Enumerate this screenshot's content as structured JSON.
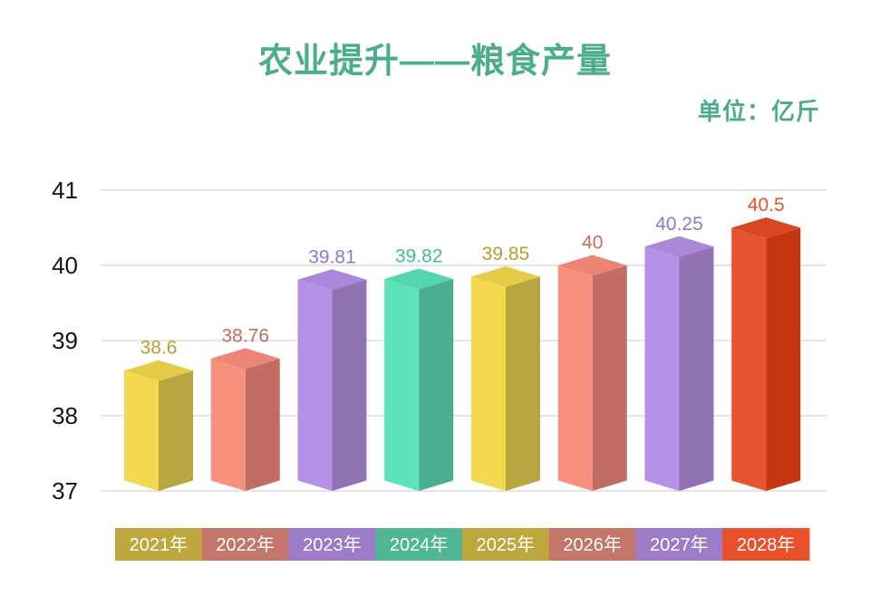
{
  "title": "农业提升——粮食产量",
  "unit_label": "单位：亿斤",
  "theme": {
    "title_color": "#4CAE88",
    "background": "#FFFFFF",
    "grid_color": "#DCDCDC",
    "axis_text_color": "#141414"
  },
  "chart_data": {
    "type": "bar",
    "title": "农业提升——粮食产量",
    "unit": "亿斤",
    "bar_style": "3d-column",
    "grid": true,
    "legend_position": "none",
    "xlabel": "",
    "ylabel": "",
    "ylim": [
      37,
      41
    ],
    "yticks": [
      37,
      38,
      39,
      40,
      41
    ],
    "categories": [
      "2021年",
      "2022年",
      "2023年",
      "2024年",
      "2025年",
      "2026年",
      "2027年",
      "2028年"
    ],
    "values": [
      38.6,
      38.76,
      39.81,
      39.82,
      39.85,
      40,
      40.25,
      40.5
    ],
    "value_labels": [
      "38.6",
      "38.76",
      "39.81",
      "39.82",
      "39.85",
      "40",
      "40.25",
      "40.5"
    ],
    "bar_colors": [
      {
        "front": "#F2D950",
        "side": "#B7A63E",
        "top": "#E5CB47",
        "label": "#B3A02F",
        "axis_cell": "#BFA73D"
      },
      {
        "front": "#F8907E",
        "side": "#C06E63",
        "top": "#EC8575",
        "label": "#C76C60",
        "axis_cell": "#C5766B"
      },
      {
        "front": "#B591E7",
        "side": "#9172B4",
        "top": "#AA87DA",
        "label": "#9477C9",
        "axis_cell": "#9C7CC9"
      },
      {
        "front": "#5CE3BB",
        "side": "#49AE90",
        "top": "#54D5AE",
        "label": "#3FBD97",
        "axis_cell": "#4FB795"
      },
      {
        "front": "#F2D950",
        "side": "#B7A63E",
        "top": "#E5CB47",
        "label": "#B3A02F",
        "axis_cell": "#BFA73D"
      },
      {
        "front": "#F8907E",
        "side": "#C06E63",
        "top": "#EC8575",
        "label": "#C76C60",
        "axis_cell": "#C5766B"
      },
      {
        "front": "#B591E7",
        "side": "#9172B4",
        "top": "#AA87DA",
        "label": "#9477C9",
        "axis_cell": "#9C7CC9"
      },
      {
        "front": "#E6552F",
        "side": "#C63512",
        "top": "#D94722",
        "label": "#E8512B",
        "axis_cell": "#E85129"
      }
    ]
  }
}
